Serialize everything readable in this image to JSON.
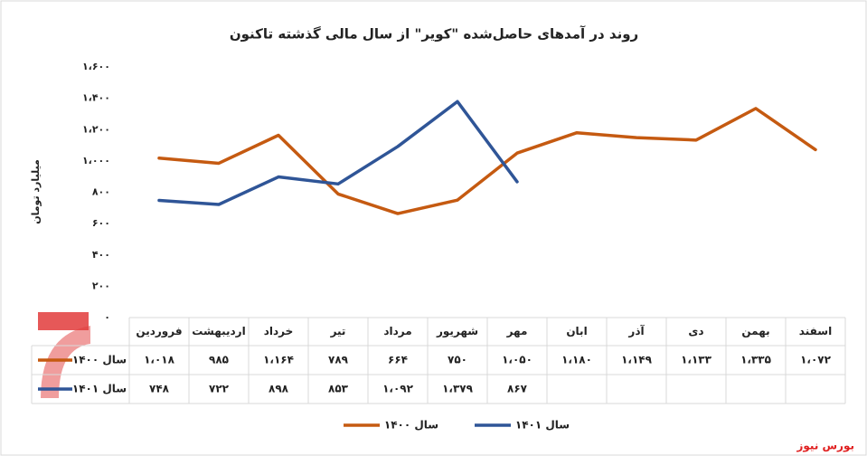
{
  "chart_data": {
    "type": "line",
    "title": "روند در آمدهای حاصل‌شده \"کویر\" از سال مالی گذشته تاکنون",
    "y_label": "میلیارد تومان",
    "watermark": "بورس نیوز",
    "categories": [
      "فروردین",
      "اردیبهشت",
      "خرداد",
      "تیر",
      "مرداد",
      "شهریور",
      "مهر",
      "ابان",
      "آذر",
      "دی",
      "بهمن",
      "اسفند"
    ],
    "series": [
      {
        "name": "سال ۱۴۰۰",
        "color": "#c55a11",
        "values": [
          1018,
          985,
          1164,
          789,
          664,
          750,
          1050,
          1180,
          1149,
          1133,
          1335,
          1072
        ],
        "value_labels": [
          "۱،۰۱۸",
          "۹۸۵",
          "۱،۱۶۴",
          "۷۸۹",
          "۶۶۴",
          "۷۵۰",
          "۱،۰۵۰",
          "۱،۱۸۰",
          "۱،۱۴۹",
          "۱،۱۳۳",
          "۱،۳۳۵",
          "۱،۰۷۲"
        ]
      },
      {
        "name": "سال ۱۴۰۱",
        "color": "#2f5597",
        "values": [
          748,
          722,
          898,
          853,
          1092,
          1379,
          867,
          null,
          null,
          null,
          null,
          null
        ],
        "value_labels": [
          "۷۴۸",
          "۷۲۲",
          "۸۹۸",
          "۸۵۳",
          "۱،۰۹۲",
          "۱،۳۷۹",
          "۸۶۷",
          null,
          null,
          null,
          null,
          null
        ]
      }
    ],
    "ylim": [
      0,
      1600
    ],
    "yticks": [
      {
        "value": 0,
        "label": "۰"
      },
      {
        "value": 200,
        "label": "۲۰۰"
      },
      {
        "value": 400,
        "label": "۴۰۰"
      },
      {
        "value": 600,
        "label": "۶۰۰"
      },
      {
        "value": 800,
        "label": "۸۰۰"
      },
      {
        "value": 1000,
        "label": "۱،۰۰۰"
      },
      {
        "value": 1200,
        "label": "۱،۲۰۰"
      },
      {
        "value": 1400,
        "label": "۱،۴۰۰"
      },
      {
        "value": 1600,
        "label": "۱،۶۰۰"
      }
    ],
    "grid": false,
    "legend": "bottom"
  }
}
